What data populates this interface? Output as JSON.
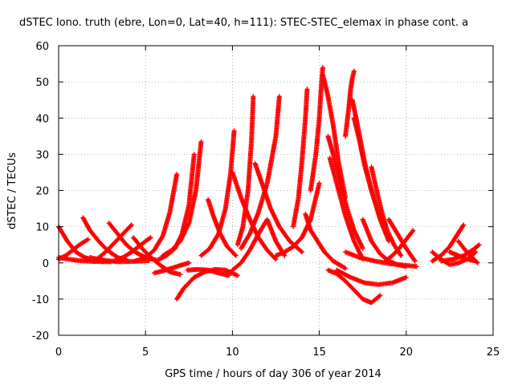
{
  "chart_data": {
    "type": "scatter",
    "title": "dSTEC Iono. truth (ebre, Lon=0, Lat=40, h=111): STEC-STEC_elemax in phase cont. a",
    "xlabel": "GPS time / hours of day 306 of year 2014",
    "ylabel": "dSTEC  / TECUs",
    "xlim": [
      0,
      25
    ],
    "ylim": [
      -20,
      60
    ],
    "xticks": [
      "0",
      "5",
      "10",
      "15",
      "20",
      "25"
    ],
    "yticks": [
      "-20",
      "-10",
      "0",
      "10",
      "20",
      "30",
      "40",
      "50",
      "60"
    ],
    "grid": true,
    "marker": "plus",
    "color": "#ff0000",
    "series": [
      {
        "x": [
          0.0,
          0.5,
          1.0,
          1.5,
          2.0,
          2.6
        ],
        "y": [
          10,
          6,
          3,
          1.5,
          0.8,
          0.5
        ]
      },
      {
        "x": [
          0.0,
          0.4,
          0.8,
          1.2,
          1.7
        ],
        "y": [
          1.0,
          2.0,
          3.5,
          5.0,
          6.5
        ]
      },
      {
        "x": [
          0.0,
          0.6,
          1.2,
          2.0,
          3.0
        ],
        "y": [
          1.5,
          1.0,
          0.6,
          0.4,
          0.3
        ]
      },
      {
        "x": [
          1.4,
          1.8,
          2.3,
          2.8,
          3.4,
          4.0
        ],
        "y": [
          12.5,
          9,
          6,
          3.5,
          1.5,
          0.5
        ]
      },
      {
        "x": [
          1.8,
          2.3,
          2.8,
          3.5,
          4.3,
          5.2
        ],
        "y": [
          1.5,
          1.0,
          0.6,
          0.3,
          0.4,
          0.6
        ]
      },
      {
        "x": [
          2.2,
          2.7,
          3.2,
          3.7,
          4.2
        ],
        "y": [
          1.0,
          3.0,
          5.5,
          8.0,
          10.5
        ]
      },
      {
        "x": [
          2.9,
          3.4,
          3.9,
          4.4,
          5.0,
          5.6
        ],
        "y": [
          11,
          8,
          5,
          3,
          1.5,
          0.8
        ]
      },
      {
        "x": [
          3.2,
          3.7,
          4.2,
          4.6,
          5.0,
          5.3
        ],
        "y": [
          0.5,
          1.5,
          3.0,
          4.5,
          6.0,
          7.0
        ]
      },
      {
        "x": [
          4.3,
          4.8,
          5.3,
          5.9,
          6.4,
          7.0
        ],
        "y": [
          7.0,
          4.0,
          1.5,
          -0.8,
          -2.5,
          -3.2
        ]
      },
      {
        "x": [
          5.5,
          6.0,
          6.5,
          7.0,
          7.5
        ],
        "y": [
          -2.8,
          -2.2,
          -1.5,
          -0.7,
          0.0
        ]
      },
      {
        "x": [
          4.4,
          5.0,
          5.5,
          6.0,
          6.4,
          6.8
        ],
        "y": [
          0.5,
          1.5,
          3.5,
          7.5,
          14.0,
          24.5
        ]
      },
      {
        "x": [
          5.7,
          6.2,
          6.7,
          7.1,
          7.5,
          7.8
        ],
        "y": [
          0.8,
          2.0,
          4.0,
          8.0,
          16.0,
          30.0
        ]
      },
      {
        "x": [
          6.0,
          6.5,
          7.0,
          7.5,
          7.9,
          8.2
        ],
        "y": [
          2.0,
          3.5,
          6.0,
          11.0,
          20.0,
          33.5
        ]
      },
      {
        "x": [
          6.8,
          7.2,
          7.8,
          8.4,
          9.0,
          9.6,
          10.3
        ],
        "y": [
          -10,
          -7,
          -4,
          -2.5,
          -1.8,
          -2.0,
          -3.5
        ]
      },
      {
        "x": [
          7.4,
          8.0,
          8.6,
          9.2,
          9.8
        ],
        "y": [
          -2.0,
          -1.8,
          -2.0,
          -2.8,
          -3.5
        ]
      },
      {
        "x": [
          8.2,
          8.7,
          9.2,
          9.6,
          9.9,
          10.1
        ],
        "y": [
          2.0,
          4.0,
          8.0,
          15.0,
          25.0,
          36.5
        ]
      },
      {
        "x": [
          8.6,
          8.9,
          9.3,
          9.7,
          10.2
        ],
        "y": [
          17.5,
          13.0,
          8.0,
          4.5,
          2.0
        ]
      },
      {
        "x": [
          10.3,
          10.6,
          10.9,
          11.1,
          11.2
        ],
        "y": [
          5.0,
          10.0,
          20.0,
          34.0,
          46.0
        ]
      },
      {
        "x": [
          10.0,
          10.5,
          11.0,
          11.5,
          12.0,
          12.5,
          13.0
        ],
        "y": [
          -2.0,
          0.0,
          3.5,
          8.0,
          12.0,
          6.0,
          2.0
        ]
      },
      {
        "x": [
          10.5,
          11.0,
          11.5,
          12.0,
          12.5,
          12.7
        ],
        "y": [
          4.0,
          8.0,
          14.0,
          22.0,
          35.0,
          46.0
        ]
      },
      {
        "x": [
          11.3,
          11.7,
          12.2,
          12.7,
          13.3,
          14.0
        ],
        "y": [
          27.5,
          22.0,
          15.0,
          10.0,
          6.0,
          3.0
        ]
      },
      {
        "x": [
          10.0,
          10.5,
          11.0,
          11.5,
          12.0,
          12.5
        ],
        "y": [
          25.0,
          18.0,
          12.0,
          7.0,
          3.5,
          1.0
        ]
      },
      {
        "x": [
          12.5,
          13.0,
          13.5,
          14.0,
          14.5,
          15.0
        ],
        "y": [
          2.0,
          3.0,
          4.5,
          7.0,
          12.0,
          22.0
        ]
      },
      {
        "x": [
          13.5,
          13.8,
          14.0,
          14.2,
          14.3
        ],
        "y": [
          10.0,
          18.0,
          28.0,
          40.0,
          48.0
        ]
      },
      {
        "x": [
          14.2,
          14.5,
          14.9,
          15.3,
          15.8,
          16.5
        ],
        "y": [
          13.5,
          9.0,
          6.0,
          3.0,
          0.5,
          -1.5
        ]
      },
      {
        "x": [
          14.5,
          14.8,
          15.0,
          15.1,
          15.2
        ],
        "y": [
          20.0,
          30.0,
          40.0,
          48.0,
          54.0
        ]
      },
      {
        "x": [
          15.2,
          15.5,
          15.8,
          16.1,
          16.5
        ],
        "y": [
          52.0,
          46.0,
          38.0,
          28.0,
          18.0
        ]
      },
      {
        "x": [
          15.5,
          15.8,
          16.2,
          16.6,
          17.0,
          17.5
        ],
        "y": [
          35.0,
          30.0,
          22.0,
          15.0,
          9.0,
          4.0
        ]
      },
      {
        "x": [
          15.6,
          16.0,
          16.5,
          17.0,
          17.5
        ],
        "y": [
          29.0,
          22.0,
          13.0,
          6.0,
          1.0
        ]
      },
      {
        "x": [
          16.5,
          16.7,
          16.8,
          16.9,
          17.0
        ],
        "y": [
          35.0,
          43.0,
          48.0,
          51.0,
          53.0
        ]
      },
      {
        "x": [
          16.9,
          17.2,
          17.6,
          18.0,
          18.5,
          19.0
        ],
        "y": [
          45.0,
          38.0,
          28.0,
          20.0,
          12.0,
          6.0
        ]
      },
      {
        "x": [
          17.0,
          17.3,
          17.6,
          18.0,
          18.4,
          18.8
        ],
        "y": [
          40.0,
          34.0,
          27.0,
          20.0,
          14.0,
          9.0
        ]
      },
      {
        "x": [
          15.5,
          16.0,
          16.5,
          17.0,
          17.5,
          18.0,
          18.5
        ],
        "y": [
          -2.0,
          -3.0,
          -5.0,
          -7.5,
          -10.0,
          -11.0,
          -9.0
        ]
      },
      {
        "x": [
          16.0,
          16.8,
          17.6,
          18.4,
          19.2,
          20.0
        ],
        "y": [
          -2.0,
          -4.0,
          -5.5,
          -6.0,
          -5.5,
          -4.0
        ]
      },
      {
        "x": [
          18.0,
          18.3,
          18.6,
          18.9,
          19.3,
          19.7
        ],
        "y": [
          26.5,
          20.0,
          14.0,
          9.0,
          5.0,
          2.0
        ]
      },
      {
        "x": [
          16.5,
          17.3,
          18.2,
          19.0,
          19.8,
          20.6
        ],
        "y": [
          3.0,
          1.5,
          0.5,
          -0.2,
          -0.6,
          -1.0
        ]
      },
      {
        "x": [
          17.5,
          18.0,
          18.5,
          19.0,
          19.5,
          20.0
        ],
        "y": [
          12.0,
          6.0,
          2.5,
          0.5,
          -0.5,
          -1.0
        ]
      },
      {
        "x": [
          18.8,
          19.2,
          19.6,
          20.0,
          20.4
        ],
        "y": [
          0.5,
          2.0,
          4.0,
          6.5,
          9.0
        ]
      },
      {
        "x": [
          19.0,
          19.5,
          20.0,
          20.5
        ],
        "y": [
          12.0,
          8.0,
          4.0,
          0.5
        ]
      },
      {
        "x": [
          21.5,
          22.0,
          22.5,
          23.0,
          23.5,
          24.0
        ],
        "y": [
          3.0,
          1.0,
          -0.5,
          0.0,
          1.0,
          3.0
        ]
      },
      {
        "x": [
          21.5,
          22.0,
          22.5,
          22.9,
          23.3
        ],
        "y": [
          0.5,
          2.0,
          4.5,
          7.5,
          10.5
        ]
      },
      {
        "x": [
          22.5,
          23.0,
          23.5,
          24.0
        ],
        "y": [
          3.0,
          2.0,
          1.0,
          0.5
        ]
      },
      {
        "x": [
          23.0,
          23.4,
          23.8,
          24.1
        ],
        "y": [
          6.0,
          3.5,
          1.5,
          0.0
        ]
      },
      {
        "x": [
          22.0,
          22.7,
          23.3,
          23.8,
          24.2
        ],
        "y": [
          0.5,
          1.0,
          2.0,
          3.5,
          5.0
        ]
      }
    ]
  }
}
